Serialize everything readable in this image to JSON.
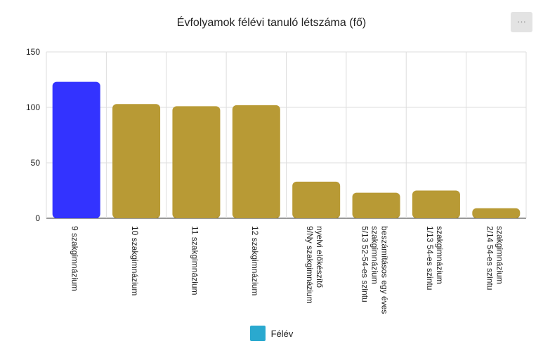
{
  "menu": {
    "icon": "more-dots-icon",
    "label": "···"
  },
  "chart_data": {
    "type": "bar",
    "title": "Évfolyamok félévi tanuló létszáma (fő)",
    "xlabel": "",
    "ylabel": "",
    "ylim": [
      0,
      150
    ],
    "yticks": [
      "0",
      "50",
      "100",
      "150"
    ],
    "grid": true,
    "legend_position": "bottom",
    "categories": [
      "9 szakgimnázium",
      "10 szakgimnázium",
      "11 szakgimnázium",
      "12 szakgimnázium",
      "9/Ny szakgimnázium nyelvi előkészítő",
      "5/13 52-54-es szintu szakgimnázium beszámításos egy éves",
      "1/13 54-es szintu szakgimnázium",
      "2/14 54-es szintu szakgimnázium"
    ],
    "category_lines": [
      [
        "9 szakgimnázium"
      ],
      [
        "10 szakgimnázium"
      ],
      [
        "11 szakgimnázium"
      ],
      [
        "12 szakgimnázium"
      ],
      [
        "9/Ny szakgimnázium",
        "nyelvi előkészítő"
      ],
      [
        "5/13 52-54-es szintu",
        "szakgimnázium",
        "beszámításos egy éves"
      ],
      [
        "1/13 54-es szintu",
        "szakgimnázium"
      ],
      [
        "2/14 54-es szintu",
        "szakgimnázium"
      ]
    ],
    "series": [
      {
        "name": "Félév",
        "values": [
          123,
          103,
          101,
          102,
          33,
          23,
          25,
          9
        ]
      }
    ],
    "colors": {
      "highlight": "#3333ff",
      "bar": "#b89a35",
      "legend": "#2aa9cf",
      "grid": "#dddddd",
      "axis": "#333333"
    },
    "highlight_index": 0
  }
}
